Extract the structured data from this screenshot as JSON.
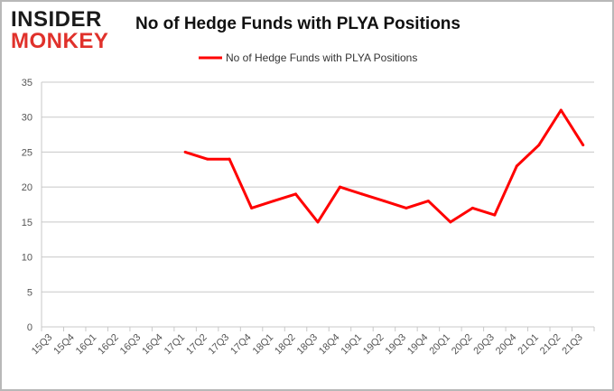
{
  "logo": {
    "line1": "INSIDER",
    "line2": "MONKEY"
  },
  "colors": {
    "series": "#ff0000",
    "grid": "#c8c8c8",
    "logo_accent": "#e0312b"
  },
  "chart_data": {
    "type": "line",
    "title": "No of Hedge Funds with PLYA Positions",
    "categories": [
      "15Q3",
      "15Q4",
      "16Q1",
      "16Q2",
      "16Q3",
      "16Q4",
      "17Q1",
      "17Q2",
      "17Q3",
      "17Q4",
      "18Q1",
      "18Q2",
      "18Q3",
      "18Q4",
      "19Q1",
      "19Q2",
      "19Q3",
      "19Q4",
      "20Q1",
      "20Q2",
      "20Q3",
      "20Q4",
      "21Q1",
      "21Q2",
      "21Q3"
    ],
    "series": [
      {
        "name": "No of Hedge Funds with PLYA Positions",
        "values": [
          null,
          null,
          null,
          null,
          null,
          null,
          25,
          24,
          24,
          17,
          18,
          19,
          15,
          20,
          19,
          18,
          17,
          18,
          15,
          17,
          16,
          23,
          26,
          31,
          26
        ]
      }
    ],
    "ylim": [
      0,
      35
    ],
    "yticks": [
      0,
      5,
      10,
      15,
      20,
      25,
      30,
      35
    ],
    "xlabel": "",
    "ylabel": "",
    "grid": true,
    "legend": "top-center"
  }
}
